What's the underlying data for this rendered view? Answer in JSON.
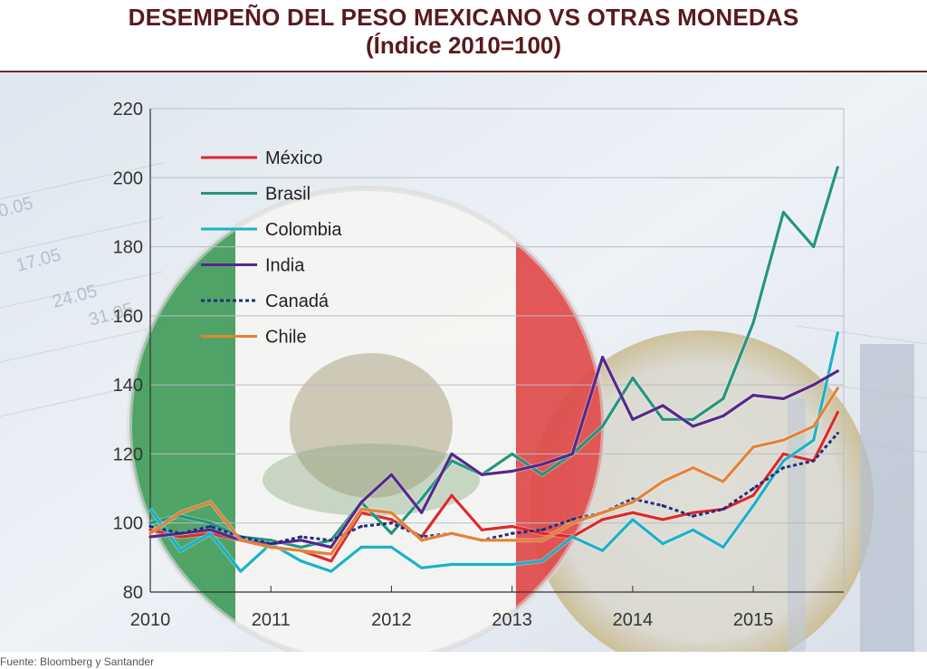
{
  "header": {
    "title": "DESEMPEÑO DEL PESO MEXICANO VS OTRAS MONEDAS",
    "subtitle": "(Índice 2010=100)"
  },
  "footer": {
    "source": "Fuente: Bloomberg y Santander"
  },
  "colors": {
    "title": "#5a1a1c",
    "grid": "#b8bcc4",
    "axis": "#333333",
    "flag_green": "#2f8a4a",
    "flag_red": "#d83a3a"
  },
  "chart_data": {
    "type": "line",
    "title": "DESEMPEÑO DEL PESO MEXICANO VS OTRAS MONEDAS",
    "subtitle": "(Índice 2010=100)",
    "xlabel": "",
    "ylabel": "",
    "xlim": [
      2010.0,
      2015.75
    ],
    "ylim": [
      80,
      220
    ],
    "x_ticks": [
      2010,
      2011,
      2012,
      2013,
      2014,
      2015
    ],
    "y_ticks": [
      80,
      100,
      120,
      140,
      160,
      180,
      200,
      220
    ],
    "grid": true,
    "legend_position": "top-left",
    "x": [
      2010.0,
      2010.25,
      2010.5,
      2010.75,
      2011.0,
      2011.25,
      2011.5,
      2011.75,
      2012.0,
      2012.25,
      2012.5,
      2012.75,
      2013.0,
      2013.25,
      2013.5,
      2013.75,
      2014.0,
      2014.25,
      2014.5,
      2014.75,
      2015.0,
      2015.25,
      2015.5,
      2015.7
    ],
    "series": [
      {
        "name": "México",
        "color": "#e0282c",
        "dash": "",
        "values": [
          98,
          96,
          97,
          95,
          93,
          92,
          89,
          103,
          101,
          96,
          108,
          98,
          99,
          97,
          96,
          101,
          103,
          101,
          103,
          104,
          108,
          120,
          118,
          132
        ]
      },
      {
        "name": "Brasil",
        "color": "#23967f",
        "dash": "",
        "values": [
          100,
          102,
          100,
          96,
          95,
          93,
          95,
          106,
          97,
          107,
          118,
          114,
          120,
          114,
          120,
          128,
          142,
          130,
          130,
          136,
          158,
          190,
          180,
          203
        ]
      },
      {
        "name": "Colombia",
        "color": "#1ab2c8",
        "dash": "",
        "values": [
          104,
          92,
          97,
          86,
          94,
          89,
          86,
          93,
          93,
          87,
          88,
          88,
          88,
          89,
          96,
          92,
          101,
          94,
          98,
          93,
          105,
          118,
          124,
          155
        ]
      },
      {
        "name": "India",
        "color": "#55288c",
        "dash": "",
        "values": [
          96,
          97,
          98,
          95,
          94,
          95,
          93,
          106,
          114,
          103,
          120,
          114,
          115,
          117,
          120,
          148,
          130,
          134,
          128,
          131,
          137,
          136,
          140,
          144
        ]
      },
      {
        "name": "Canadá",
        "color": "#1e2f7c",
        "dash": "4,3",
        "values": [
          99,
          97,
          99,
          96,
          94,
          96,
          95,
          99,
          100,
          96,
          97,
          95,
          97,
          98,
          101,
          103,
          107,
          105,
          102,
          104,
          110,
          116,
          118,
          126
        ]
      },
      {
        "name": "Chile",
        "color": "#e58236",
        "dash": "",
        "values": [
          97,
          103,
          106,
          95,
          93,
          92,
          91,
          104,
          103,
          95,
          97,
          95,
          95,
          95,
          100,
          103,
          106,
          112,
          116,
          112,
          122,
          124,
          128,
          139
        ]
      }
    ]
  }
}
